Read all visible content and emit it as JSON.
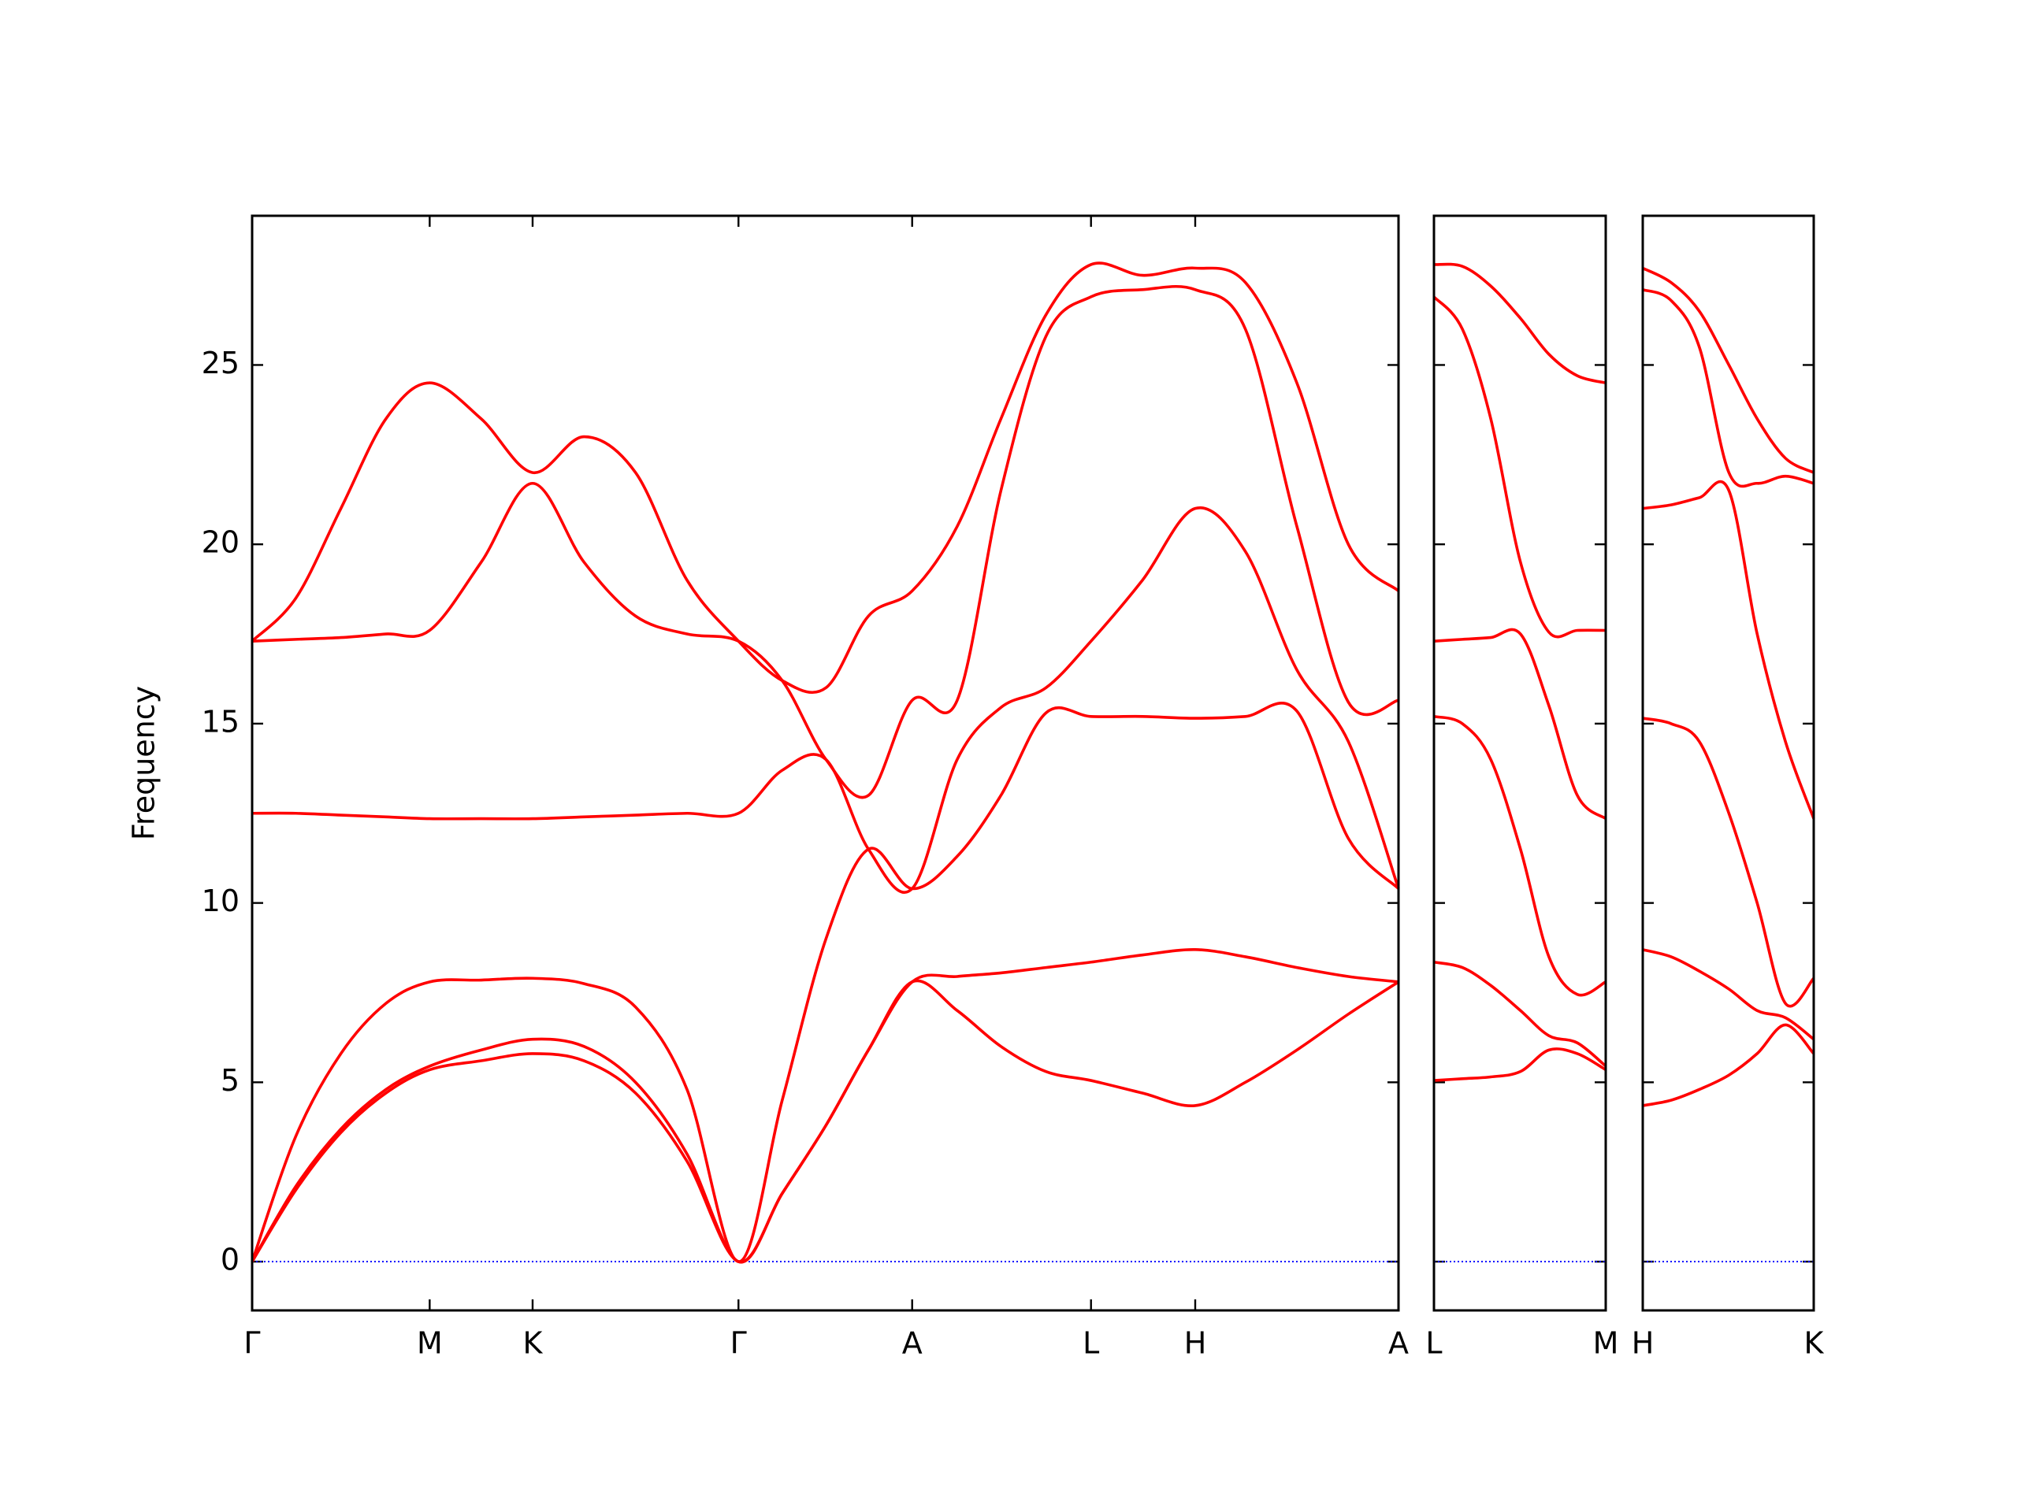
{
  "chart_data": [
    {
      "type": "line",
      "ylabel": "Frequency",
      "ylim": [
        -1.36,
        29.16
      ],
      "yticks": [
        0,
        5,
        10,
        15,
        20,
        25
      ],
      "ytick_labels": true,
      "xlim": [
        0,
        8.91
      ],
      "xticks": [
        {
          "value": 0,
          "label": "Γ"
        },
        {
          "value": 1.38,
          "label": "M"
        },
        {
          "value": 2.18,
          "label": "K"
        },
        {
          "value": 3.78,
          "label": "Γ"
        },
        {
          "value": 5.13,
          "label": "A"
        },
        {
          "value": 6.52,
          "label": "L"
        },
        {
          "value": 7.33,
          "label": "H"
        },
        {
          "value": 8.91,
          "label": "A"
        }
      ],
      "reference_line": 0,
      "reference_color": "#0000ff",
      "x": [
        0,
        0.34,
        0.69,
        1.04,
        1.38,
        1.78,
        2.18,
        2.58,
        2.98,
        3.38,
        3.78,
        4.12,
        4.46,
        4.79,
        5.13,
        5.48,
        5.82,
        6.17,
        6.52,
        6.92,
        7.33,
        7.72,
        8.12,
        8.52,
        8.91
      ],
      "series": [
        {
          "color": "#ff0000",
          "values": [
            0,
            2.0,
            3.6,
            4.7,
            5.35,
            5.6,
            5.8,
            5.6,
            4.7,
            2.8,
            0,
            1.9,
            3.8,
            5.9,
            7.8,
            7.0,
            6.0,
            5.3,
            5.05,
            4.7,
            4.35,
            5.0,
            5.9,
            6.9,
            7.8
          ]
        },
        {
          "color": "#ff0000",
          "values": [
            0,
            2.1,
            3.7,
            4.8,
            5.45,
            5.9,
            6.2,
            6.0,
            5.0,
            3.0,
            0,
            1.9,
            3.8,
            5.9,
            7.8,
            7.95,
            8.05,
            8.2,
            8.35,
            8.55,
            8.7,
            8.5,
            8.2,
            7.95,
            7.8
          ]
        },
        {
          "color": "#ff0000",
          "values": [
            0,
            3.5,
            5.8,
            7.2,
            7.8,
            7.85,
            7.9,
            7.75,
            7.1,
            4.8,
            0,
            4.5,
            9.0,
            11.5,
            10.4,
            11.3,
            13.0,
            15.3,
            15.2,
            15.2,
            15.15,
            15.2,
            15.35,
            11.8,
            10.4
          ]
        },
        {
          "color": "#ff0000",
          "values": [
            12.5,
            12.5,
            12.45,
            12.4,
            12.35,
            12.35,
            12.35,
            12.4,
            12.45,
            12.5,
            12.5,
            13.7,
            14.0,
            11.5,
            10.4,
            14.0,
            15.45,
            16.0,
            17.3,
            19.0,
            21.0,
            19.8,
            16.5,
            14.5,
            10.4
          ]
        },
        {
          "color": "#ff0000",
          "values": [
            17.3,
            17.35,
            17.4,
            17.5,
            17.6,
            19.5,
            21.7,
            19.5,
            18.0,
            17.5,
            17.3,
            16.2,
            14.0,
            13.0,
            15.65,
            15.65,
            21.5,
            25.8,
            26.9,
            27.1,
            27.1,
            26.0,
            20.5,
            15.6,
            15.65
          ]
        },
        {
          "color": "#ff0000",
          "values": [
            17.3,
            18.5,
            21.0,
            23.5,
            24.5,
            23.5,
            22.0,
            23.0,
            22.0,
            19.0,
            17.3,
            16.2,
            16.0,
            18.0,
            18.7,
            20.5,
            23.5,
            26.4,
            27.8,
            27.5,
            27.7,
            27.3,
            24.5,
            20.0,
            18.7
          ]
        }
      ]
    },
    {
      "type": "line",
      "ylim": [
        -1.36,
        29.16
      ],
      "yticks": [
        0,
        5,
        10,
        15,
        20,
        25
      ],
      "ytick_labels": false,
      "xlim": [
        0,
        1.33
      ],
      "xticks": [
        {
          "value": 0,
          "label": "L"
        },
        {
          "value": 1.33,
          "label": "M"
        }
      ],
      "reference_line": 0,
      "reference_color": "#0000ff",
      "x": [
        0,
        0.22,
        0.44,
        0.67,
        0.89,
        1.11,
        1.33
      ],
      "series": [
        {
          "color": "#ff0000",
          "values": [
            5.05,
            5.1,
            5.15,
            5.3,
            5.9,
            5.8,
            5.35
          ]
        },
        {
          "color": "#ff0000",
          "values": [
            8.35,
            8.2,
            7.7,
            7.0,
            6.3,
            6.1,
            5.45
          ]
        },
        {
          "color": "#ff0000",
          "values": [
            15.2,
            15.0,
            14.0,
            11.5,
            8.5,
            7.45,
            7.8
          ]
        },
        {
          "color": "#ff0000",
          "values": [
            17.3,
            17.35,
            17.4,
            17.5,
            15.5,
            13.0,
            12.35
          ]
        },
        {
          "color": "#ff0000",
          "values": [
            26.9,
            26.0,
            23.5,
            19.5,
            17.55,
            17.6,
            17.6
          ]
        },
        {
          "color": "#ff0000",
          "values": [
            27.8,
            27.75,
            27.2,
            26.3,
            25.3,
            24.7,
            24.5
          ]
        }
      ]
    },
    {
      "type": "line",
      "ylim": [
        -1.36,
        29.16
      ],
      "yticks": [
        0,
        5,
        10,
        15,
        20,
        25
      ],
      "ytick_labels": false,
      "xlim": [
        0,
        1.33
      ],
      "xticks": [
        {
          "value": 0,
          "label": "H"
        },
        {
          "value": 1.33,
          "label": "K"
        }
      ],
      "reference_line": 0,
      "reference_color": "#0000ff",
      "x": [
        0,
        0.22,
        0.44,
        0.67,
        0.89,
        1.11,
        1.33
      ],
      "series": [
        {
          "color": "#ff0000",
          "values": [
            4.35,
            4.5,
            4.8,
            5.2,
            5.8,
            6.6,
            5.8
          ]
        },
        {
          "color": "#ff0000",
          "values": [
            8.7,
            8.5,
            8.1,
            7.6,
            7.0,
            6.8,
            6.2
          ]
        },
        {
          "color": "#ff0000",
          "values": [
            15.15,
            15.0,
            14.5,
            12.5,
            10.0,
            7.2,
            7.9
          ]
        },
        {
          "color": "#ff0000",
          "values": [
            21.0,
            21.1,
            21.3,
            21.5,
            17.5,
            14.5,
            12.35
          ]
        },
        {
          "color": "#ff0000",
          "values": [
            27.1,
            26.8,
            25.5,
            22.0,
            21.7,
            21.9,
            21.7
          ]
        },
        {
          "color": "#ff0000",
          "values": [
            27.7,
            27.3,
            26.5,
            25.0,
            23.5,
            22.4,
            22.0
          ]
        }
      ]
    }
  ]
}
